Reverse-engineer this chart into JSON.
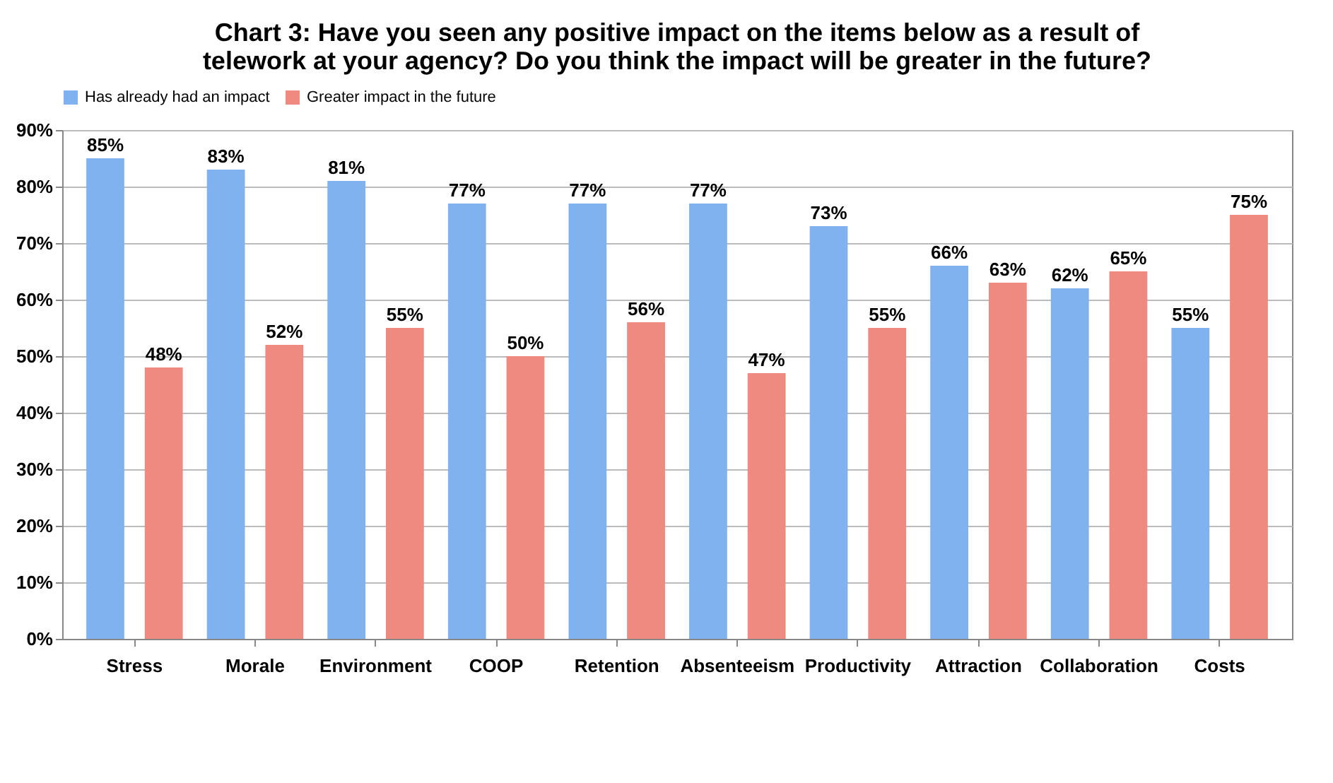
{
  "chart_data": {
    "type": "bar",
    "title": "Chart 3: Have you seen any positive impact on the items below as a result of telework at your agency? Do you think the impact will be greater in the future?",
    "categories": [
      "Stress",
      "Morale",
      "Environment",
      "COOP",
      "Retention",
      "Absenteeism",
      "Productivity",
      "Attraction",
      "Collaboration",
      "Costs"
    ],
    "series": [
      {
        "name": "Has already had an impact",
        "color": "#7fb2ee",
        "values": [
          85,
          83,
          81,
          77,
          77,
          77,
          73,
          66,
          62,
          55
        ],
        "value_labels": [
          "85%",
          "83%",
          "81%",
          "77%",
          "77%",
          "77%",
          "73%",
          "66%",
          "62%",
          "55%"
        ]
      },
      {
        "name": "Greater impact in the future",
        "color": "#ee8a80",
        "values": [
          48,
          52,
          55,
          50,
          56,
          47,
          55,
          63,
          65,
          75
        ],
        "value_labels": [
          "48%",
          "52%",
          "55%",
          "50%",
          "56%",
          "47%",
          "55%",
          "63%",
          "65%",
          "75%"
        ]
      }
    ],
    "ylim": [
      0,
      90
    ],
    "yticks": [
      {
        "value": 0,
        "label": "0%"
      },
      {
        "value": 10,
        "label": "10%"
      },
      {
        "value": 20,
        "label": "20%"
      },
      {
        "value": 30,
        "label": "30%"
      },
      {
        "value": 40,
        "label": "40%"
      },
      {
        "value": 50,
        "label": "50%"
      },
      {
        "value": 60,
        "label": "60%"
      },
      {
        "value": 70,
        "label": "70%"
      },
      {
        "value": 80,
        "label": "80%"
      },
      {
        "value": 90,
        "label": "90%"
      }
    ],
    "grid": "y",
    "legend": "top"
  }
}
